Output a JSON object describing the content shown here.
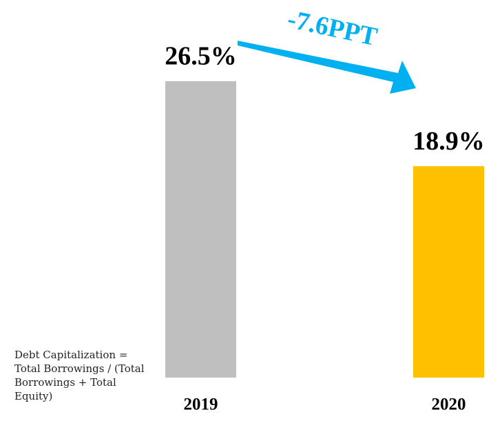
{
  "chart_data": {
    "type": "bar",
    "categories": [
      "2019",
      "2020"
    ],
    "values": [
      26.5,
      18.9
    ],
    "value_labels": [
      "26.5%",
      "18.9%"
    ],
    "colors": [
      "#bfbfbf",
      "#ffc000"
    ],
    "ylim": [
      0,
      30
    ],
    "annotation": "-7.6PPT",
    "note": "Debt Capitalization = Total Borrowings / (Total Borrowings + Total Equity)"
  }
}
